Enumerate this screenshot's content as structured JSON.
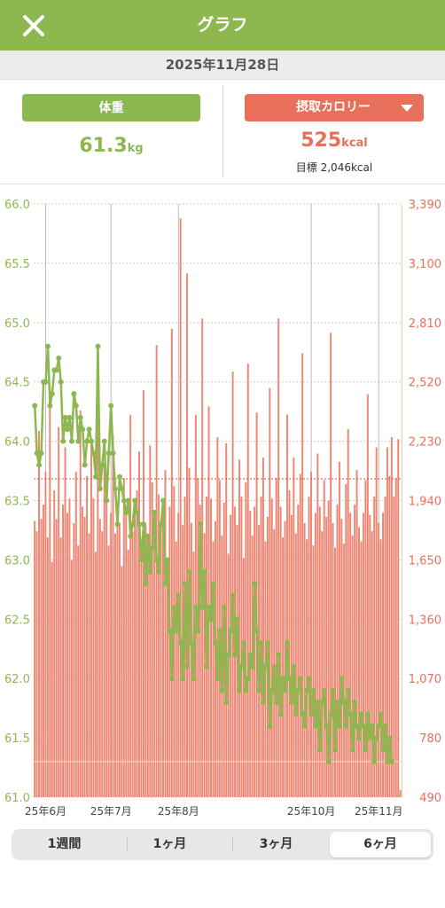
{
  "header": {
    "title": "グラフ",
    "close_icon": "close-icon"
  },
  "date": "2025年11月28日",
  "weight": {
    "label": "体重",
    "value": "61.3",
    "unit": "kg"
  },
  "calorie": {
    "label": "摂取カロリー",
    "value": "525",
    "unit": "kcal",
    "goal": "目標 2,046kcal"
  },
  "tabs": [
    {
      "label": "1週間",
      "active": false
    },
    {
      "label": "1ヶ月",
      "active": false
    },
    {
      "label": "3ヶ月",
      "active": false
    },
    {
      "label": "6ヶ月",
      "active": true
    }
  ],
  "colors": {
    "green": "#8cb84f",
    "red": "#e8705b",
    "bar": "#ee8674",
    "grid": "#cfcfcf"
  },
  "chart_data": {
    "type": "bar",
    "y_left": {
      "min": 61.0,
      "max": 66.0,
      "ticks": [
        "61.0",
        "61.5",
        "62.0",
        "62.5",
        "63.0",
        "63.5",
        "64.0",
        "64.5",
        "65.0",
        "65.5",
        "66.0"
      ]
    },
    "y_right": {
      "min": 490,
      "max": 3390,
      "ticks": [
        "490",
        "780",
        "1,070",
        "1,360",
        "1,650",
        "1,940",
        "2,230",
        "2,520",
        "2,810",
        "3,100",
        "3,390"
      ]
    },
    "x_ticks": [
      {
        "label": "25年6月",
        "index": 5
      },
      {
        "label": "25年7月",
        "index": 35
      },
      {
        "label": "25年8月",
        "index": 66
      },
      {
        "label": "25年10月",
        "index": 127
      },
      {
        "label": "25年11月",
        "index": 158
      }
    ],
    "goal_calories": 2046,
    "target_weight": 61.3,
    "series": [
      {
        "name": "摂取カロリー",
        "axis": "right",
        "values": [
          1840,
          1790,
          2280,
          1850,
          1920,
          2080,
          1760,
          2500,
          1640,
          1990,
          1850,
          2300,
          1760,
          1920,
          2200,
          1880,
          1950,
          1650,
          1830,
          2080,
          1720,
          2380,
          1910,
          1860,
          2060,
          1780,
          2240,
          1950,
          1690,
          2520,
          1850,
          1790,
          2120,
          1990,
          1720,
          1880,
          2260,
          1780,
          1930,
          1830,
          1620,
          2050,
          1890,
          1700,
          2360,
          1790,
          1910,
          1990,
          2180,
          1740,
          2480,
          1820,
          1690,
          2210,
          2030,
          1880,
          2700,
          1970,
          1760,
          1860,
          2090,
          1650,
          1910,
          2780,
          2010,
          1740,
          1880,
          3320,
          1820,
          1960,
          3050,
          2100,
          1830,
          1690,
          2360,
          2050,
          1920,
          2830,
          1780,
          1960,
          2400,
          1950,
          1740,
          1840,
          2250,
          2040,
          1770,
          1930,
          2220,
          1680,
          1870,
          2570,
          1910,
          1820,
          2140,
          1960,
          1660,
          2030,
          2610,
          1890,
          1770,
          1910,
          2370,
          1820,
          1960,
          2150,
          1740,
          1860,
          2490,
          1950,
          1800,
          2050,
          2830,
          1910,
          1760,
          1840,
          2360,
          1990,
          1870,
          2150,
          1780,
          1920,
          2070,
          2660,
          1830,
          1750,
          1960,
          2080,
          1720,
          1880,
          2170,
          1910,
          1790,
          2040,
          1860,
          1940,
          2760,
          1830,
          1710,
          1920,
          2130,
          1850,
          1730,
          2020,
          2290,
          1880,
          1770,
          1920,
          2090,
          1810,
          1740,
          1880,
          2040,
          2460,
          1870,
          1790,
          1960,
          2200,
          1830,
          1750,
          1880,
          1960,
          2200,
          2060,
          2250,
          1960,
          2050,
          2240,
          525
        ]
      },
      {
        "name": "体重",
        "axis": "left",
        "values": [
          64.3,
          63.9,
          63.8,
          63.9,
          64.5,
          64.5,
          64.8,
          64.3,
          64.4,
          64.6,
          64.6,
          64.7,
          64.5,
          64.0,
          64.2,
          64.1,
          64.2,
          64.0,
          64.4,
          64.3,
          64.0,
          64.2,
          64.1,
          63.8,
          64.0,
          64.1,
          64.0,
          63.9,
          63.7,
          64.8,
          63.6,
          63.8,
          64.0,
          63.5,
          63.9,
          64.3,
          63.9,
          63.6,
          63.3,
          63.7,
          63.6,
          63.5,
          63.4,
          63.5,
          63.2,
          63.3,
          63.5,
          63.4,
          63.3,
          63.0,
          63.3,
          62.8,
          63.2,
          62.9,
          63.1,
          63.4,
          63.0,
          62.9,
          63.3,
          63.5,
          62.8,
          63.0,
          62.4,
          62.0,
          62.6,
          62.4,
          62.7,
          62.3,
          62.0,
          62.8,
          62.1,
          62.9,
          62.3,
          62.0,
          62.6,
          62.4,
          63.3,
          62.6,
          62.9,
          62.1,
          62.6,
          62.5,
          62.8,
          62.3,
          62.0,
          62.4,
          61.9,
          62.6,
          61.8,
          62.2,
          62.4,
          62.7,
          62.2,
          62.5,
          61.9,
          62.1,
          62.3,
          61.9,
          62.0,
          62.2,
          62.1,
          62.8,
          62.4,
          61.9,
          62.3,
          61.8,
          62.1,
          62.3,
          61.6,
          61.9,
          62.1,
          61.8,
          62.2,
          61.7,
          62.0,
          61.9,
          62.3,
          62.0,
          61.8,
          62.1,
          61.7,
          61.9,
          62.0,
          61.7,
          61.6,
          61.9,
          62.0,
          61.7,
          61.9,
          61.6,
          61.8,
          61.4,
          61.8,
          61.9,
          61.6,
          61.3,
          61.7,
          61.9,
          61.4,
          61.8,
          61.6,
          62.0,
          61.8,
          61.6,
          61.9,
          61.7,
          61.4,
          61.8,
          61.6,
          61.5,
          61.7,
          61.6,
          61.4,
          61.7,
          61.5,
          61.6,
          61.3,
          61.5,
          61.6,
          61.7,
          61.4,
          61.6,
          61.3,
          61.5,
          61.3
        ]
      }
    ]
  }
}
